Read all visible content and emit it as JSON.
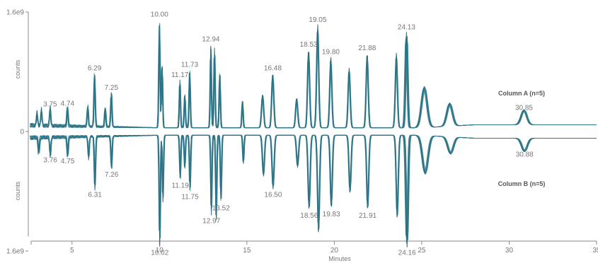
{
  "chart_data": {
    "type": "line",
    "xlabel": "Minutes",
    "ylabel_top": "counts",
    "ylabel_bottom": "counts",
    "xlim": [
      2.5,
      35
    ],
    "xticks": [
      5,
      10,
      15,
      20,
      25,
      30,
      35
    ],
    "xtick_labels": [
      "5",
      "10",
      "15",
      "20",
      "25",
      "30",
      "35"
    ],
    "yticks": [
      {
        "value": 1600000000.0,
        "label": "1.6e9"
      },
      {
        "value": 0,
        "label": "0"
      },
      {
        "value": -1600000000.0,
        "label": "1.6e9"
      }
    ],
    "ylim": [
      -1600000000.0,
      1600000000.0
    ],
    "colors": {
      "trace": "#1e6a7d",
      "trace_alt": "#3d8a9c",
      "axis": "#8a8a8a",
      "text": "#777777"
    },
    "series": [
      {
        "name": "Column A (n=5)",
        "direction": "up",
        "baseline": 50000000.0,
        "peaks": [
          {
            "rt": 3.0,
            "height": 180000000.0,
            "label": ""
          },
          {
            "rt": 3.25,
            "height": 220000000.0,
            "label": ""
          },
          {
            "rt": 3.75,
            "height": 250000000.0,
            "label": "3.75"
          },
          {
            "rt": 4.74,
            "height": 260000000.0,
            "label": "4.74"
          },
          {
            "rt": 5.9,
            "height": 280000000.0,
            "label": ""
          },
          {
            "rt": 6.29,
            "height": 730000000.0,
            "label": "6.29"
          },
          {
            "rt": 6.9,
            "height": 260000000.0,
            "label": ""
          },
          {
            "rt": 7.25,
            "height": 470000000.0,
            "label": "7.25"
          },
          {
            "rt": 10.0,
            "height": 1450000000.0,
            "label": "10.00"
          },
          {
            "rt": 10.15,
            "height": 850000000.0,
            "label": ""
          },
          {
            "rt": 11.17,
            "height": 640000000.0,
            "label": "11.17"
          },
          {
            "rt": 11.45,
            "height": 450000000.0,
            "label": ""
          },
          {
            "rt": 11.73,
            "height": 780000000.0,
            "label": "11.73"
          },
          {
            "rt": 12.94,
            "height": 1120000000.0,
            "label": "12.94"
          },
          {
            "rt": 13.15,
            "height": 1070000000.0,
            "label": ""
          },
          {
            "rt": 13.45,
            "height": 750000000.0,
            "label": ""
          },
          {
            "rt": 14.75,
            "height": 370000000.0,
            "label": ""
          },
          {
            "rt": 15.9,
            "height": 450000000.0,
            "label": ""
          },
          {
            "rt": 16.48,
            "height": 730000000.0,
            "label": "16.48"
          },
          {
            "rt": 17.85,
            "height": 400000000.0,
            "label": ""
          },
          {
            "rt": 18.53,
            "height": 1050000000.0,
            "label": "18.53"
          },
          {
            "rt": 19.05,
            "height": 1380000000.0,
            "label": "19.05"
          },
          {
            "rt": 19.8,
            "height": 950000000.0,
            "label": "19.80"
          },
          {
            "rt": 20.85,
            "height": 800000000.0,
            "label": ""
          },
          {
            "rt": 21.88,
            "height": 1000000000.0,
            "label": "21.88"
          },
          {
            "rt": 23.55,
            "height": 1000000000.0,
            "label": ""
          },
          {
            "rt": 24.13,
            "height": 1280000000.0,
            "label": "24.13"
          },
          {
            "rt": 25.15,
            "height": 550000000.0,
            "label": ""
          },
          {
            "rt": 26.6,
            "height": 310000000.0,
            "label": ""
          },
          {
            "rt": 30.85,
            "height": 200000000.0,
            "label": "30.85"
          }
        ]
      },
      {
        "name": "Column B (n=5)",
        "direction": "down",
        "baseline": 50000000.0,
        "peaks": [
          {
            "rt": 3.1,
            "height": 220000000.0,
            "label": ""
          },
          {
            "rt": 3.76,
            "height": 260000000.0,
            "label": "3.76"
          },
          {
            "rt": 4.75,
            "height": 270000000.0,
            "label": "4.75"
          },
          {
            "rt": 5.95,
            "height": 300000000.0,
            "label": ""
          },
          {
            "rt": 6.31,
            "height": 720000000.0,
            "label": "6.31"
          },
          {
            "rt": 7.26,
            "height": 450000000.0,
            "label": "7.26"
          },
          {
            "rt": 10.02,
            "height": 1500000000.0,
            "label": "10.02"
          },
          {
            "rt": 10.2,
            "height": 900000000.0,
            "label": ""
          },
          {
            "rt": 11.19,
            "height": 600000000.0,
            "label": "11.19"
          },
          {
            "rt": 11.45,
            "height": 450000000.0,
            "label": ""
          },
          {
            "rt": 11.75,
            "height": 750000000.0,
            "label": "11.75"
          },
          {
            "rt": 12.97,
            "height": 1070000000.0,
            "label": "12.97"
          },
          {
            "rt": 13.25,
            "height": 1150000000.0,
            "label": ""
          },
          {
            "rt": 13.52,
            "height": 900000000.0,
            "label": "13.52"
          },
          {
            "rt": 14.8,
            "height": 380000000.0,
            "label": ""
          },
          {
            "rt": 15.95,
            "height": 550000000.0,
            "label": ""
          },
          {
            "rt": 16.5,
            "height": 720000000.0,
            "label": "16.50"
          },
          {
            "rt": 17.9,
            "height": 430000000.0,
            "label": ""
          },
          {
            "rt": 18.56,
            "height": 1000000000.0,
            "label": "18.56"
          },
          {
            "rt": 19.1,
            "height": 1320000000.0,
            "label": ""
          },
          {
            "rt": 19.83,
            "height": 980000000.0,
            "label": "19.83"
          },
          {
            "rt": 20.9,
            "height": 780000000.0,
            "label": ""
          },
          {
            "rt": 21.91,
            "height": 1000000000.0,
            "label": "21.91"
          },
          {
            "rt": 23.6,
            "height": 1120000000.0,
            "label": ""
          },
          {
            "rt": 24.16,
            "height": 1500000000.0,
            "label": "24.16"
          },
          {
            "rt": 25.2,
            "height": 520000000.0,
            "label": ""
          },
          {
            "rt": 26.65,
            "height": 230000000.0,
            "label": ""
          },
          {
            "rt": 30.88,
            "height": 180000000.0,
            "label": "30.88"
          }
        ]
      }
    ]
  }
}
